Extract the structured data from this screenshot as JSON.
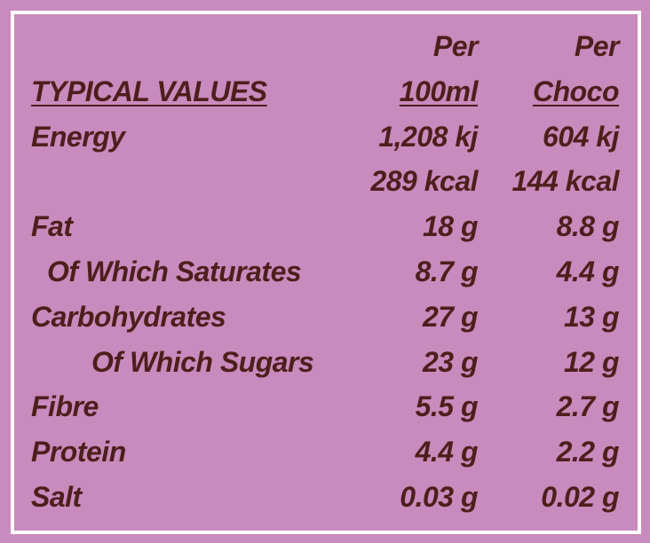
{
  "table": {
    "label_header": "TYPICAL VALUES",
    "columns": [
      {
        "line1": "Per",
        "line2": "100ml"
      },
      {
        "line1": "Per",
        "line2": "Choco"
      }
    ],
    "rows": [
      {
        "label": "Energy",
        "values": [
          "1,208 kj",
          "604 kj"
        ]
      },
      {
        "values": [
          "289 kcal",
          "144 kcal"
        ]
      },
      {
        "label": "Fat",
        "values": [
          "18 g",
          "8.8 g"
        ]
      },
      {
        "label": "Of Which Saturates",
        "values": [
          "8.7 g",
          "4.4 g"
        ]
      },
      {
        "label": "Carbohydrates",
        "values": [
          "27 g",
          "13 g"
        ]
      },
      {
        "label": "Of Which Sugars",
        "values": [
          "23 g",
          "12 g"
        ]
      },
      {
        "label": "Fibre",
        "values": [
          "5.5 g",
          "2.7 g"
        ]
      },
      {
        "label": "Protein",
        "values": [
          "4.4 g",
          "2.2 g"
        ]
      },
      {
        "label": "Salt",
        "values": [
          "0.03 g",
          "0.02 g"
        ]
      }
    ]
  }
}
